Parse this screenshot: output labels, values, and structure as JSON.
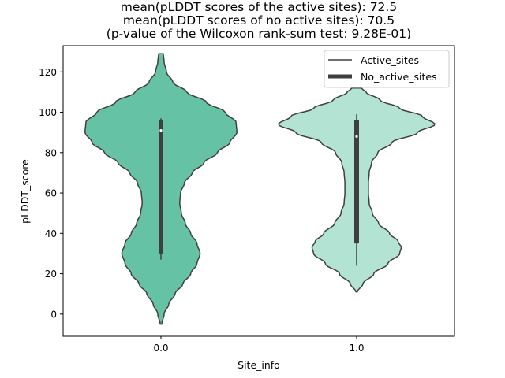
{
  "chart_data": {
    "type": "violin",
    "title_lines": [
      "mean(pLDDT scores of the active sites): 72.5",
      "mean(pLDDT scores of no active sites): 70.5",
      "(p-value of the Wilcoxon rank-sum test: 9.28E-01)"
    ],
    "xlabel": "Site_info",
    "ylabel": "pLDDT_score",
    "ylim": [
      -11,
      133
    ],
    "yticks": [
      0,
      20,
      40,
      60,
      80,
      100,
      120
    ],
    "categories": [
      "0.0",
      "1.0"
    ],
    "legend": {
      "placement": "upper right",
      "entries": [
        "Active_sites",
        "No_active_sites"
      ]
    },
    "series": [
      {
        "category": "0.0",
        "color": "#66c2a5",
        "median": 91,
        "q1": 30,
        "q3": 96,
        "whisker_low": 27,
        "whisker_high": 97,
        "kde_min": -5,
        "kde_max": 129,
        "density": [
          [
            -5,
            0.01
          ],
          [
            0,
            0.04
          ],
          [
            5,
            0.1
          ],
          [
            10,
            0.18
          ],
          [
            15,
            0.28
          ],
          [
            20,
            0.38
          ],
          [
            25,
            0.46
          ],
          [
            30,
            0.5
          ],
          [
            35,
            0.46
          ],
          [
            40,
            0.38
          ],
          [
            45,
            0.31
          ],
          [
            50,
            0.26
          ],
          [
            55,
            0.24
          ],
          [
            60,
            0.25
          ],
          [
            65,
            0.3
          ],
          [
            70,
            0.4
          ],
          [
            75,
            0.55
          ],
          [
            80,
            0.72
          ],
          [
            85,
            0.88
          ],
          [
            90,
            0.97
          ],
          [
            95,
            0.96
          ],
          [
            100,
            0.82
          ],
          [
            105,
            0.58
          ],
          [
            110,
            0.33
          ],
          [
            115,
            0.15
          ],
          [
            120,
            0.07
          ],
          [
            125,
            0.04
          ],
          [
            129,
            0.03
          ]
        ]
      },
      {
        "category": "1.0",
        "color": "#b2e3d3",
        "median": 88,
        "q1": 35,
        "q3": 96,
        "whisker_low": 24,
        "whisker_high": 99,
        "kde_min": 11,
        "kde_max": 112,
        "density": [
          [
            11,
            0.01
          ],
          [
            15,
            0.08
          ],
          [
            20,
            0.22
          ],
          [
            25,
            0.4
          ],
          [
            30,
            0.55
          ],
          [
            33,
            0.57
          ],
          [
            36,
            0.53
          ],
          [
            40,
            0.42
          ],
          [
            45,
            0.28
          ],
          [
            50,
            0.2
          ],
          [
            55,
            0.16
          ],
          [
            60,
            0.15
          ],
          [
            65,
            0.15
          ],
          [
            70,
            0.16
          ],
          [
            75,
            0.19
          ],
          [
            80,
            0.27
          ],
          [
            85,
            0.45
          ],
          [
            90,
            0.78
          ],
          [
            94,
            1.0
          ],
          [
            98,
            0.84
          ],
          [
            102,
            0.55
          ],
          [
            106,
            0.3
          ],
          [
            110,
            0.12
          ],
          [
            112,
            0.06
          ]
        ]
      }
    ]
  }
}
